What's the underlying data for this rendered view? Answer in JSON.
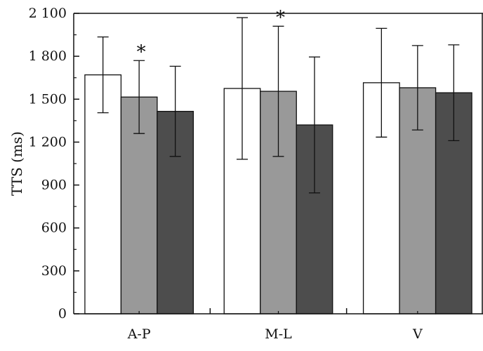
{
  "chart_data": {
    "type": "bar",
    "title": "",
    "xlabel": "",
    "ylabel": "TTS (ms)",
    "ylim": [
      0,
      2100
    ],
    "yticks": [
      0,
      300,
      600,
      900,
      1200,
      1500,
      1800,
      2100
    ],
    "ytick_labels": [
      "0",
      "300",
      "600",
      "900",
      "1 200",
      "1 500",
      "1 800",
      "2 100"
    ],
    "categories": [
      "A-P",
      "M-L",
      "V"
    ],
    "series": [
      {
        "fill": "#ffffff",
        "values": [
          1670,
          1575,
          1615
        ],
        "errors": [
          265,
          495,
          380
        ]
      },
      {
        "fill": "#999999",
        "values": [
          1515,
          1555,
          1580
        ],
        "errors": [
          255,
          455,
          295
        ]
      },
      {
        "fill": "#4d4d4d",
        "values": [
          1415,
          1320,
          1545
        ],
        "errors": [
          315,
          475,
          335
        ]
      }
    ],
    "annotations": [
      {
        "text": "*",
        "category": "A-P",
        "series_index": 1
      },
      {
        "text": "*",
        "category": "M-L",
        "series_index": 1
      }
    ],
    "grid": false,
    "legend": "none"
  }
}
